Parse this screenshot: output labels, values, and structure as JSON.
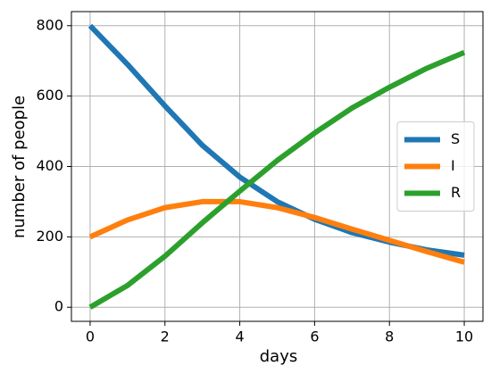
{
  "chart_data": {
    "type": "line",
    "x": [
      0,
      1,
      2,
      3,
      4,
      5,
      6,
      7,
      8,
      9,
      10
    ],
    "series": [
      {
        "name": "S",
        "color": "#1f77b4",
        "values": [
          800,
          690,
          572,
          460,
          370,
          300,
          250,
          212,
          185,
          163,
          148
        ]
      },
      {
        "name": "I",
        "color": "#ff7f0e",
        "values": [
          200,
          248,
          283,
          300,
          300,
          283,
          255,
          222,
          190,
          158,
          128
        ]
      },
      {
        "name": "R",
        "color": "#2ca02c",
        "values": [
          0,
          62,
          145,
          240,
          330,
          417,
          495,
          566,
          625,
          679,
          724
        ]
      }
    ],
    "x_label": "days",
    "y_label": "number of people",
    "xlim": [
      -0.5,
      10.5
    ],
    "xticks": [
      0,
      2,
      4,
      6,
      8,
      10
    ],
    "ylim": [
      -40,
      840
    ],
    "yticks": [
      0,
      200,
      400,
      600,
      800
    ],
    "grid": true,
    "legend": "center right"
  }
}
